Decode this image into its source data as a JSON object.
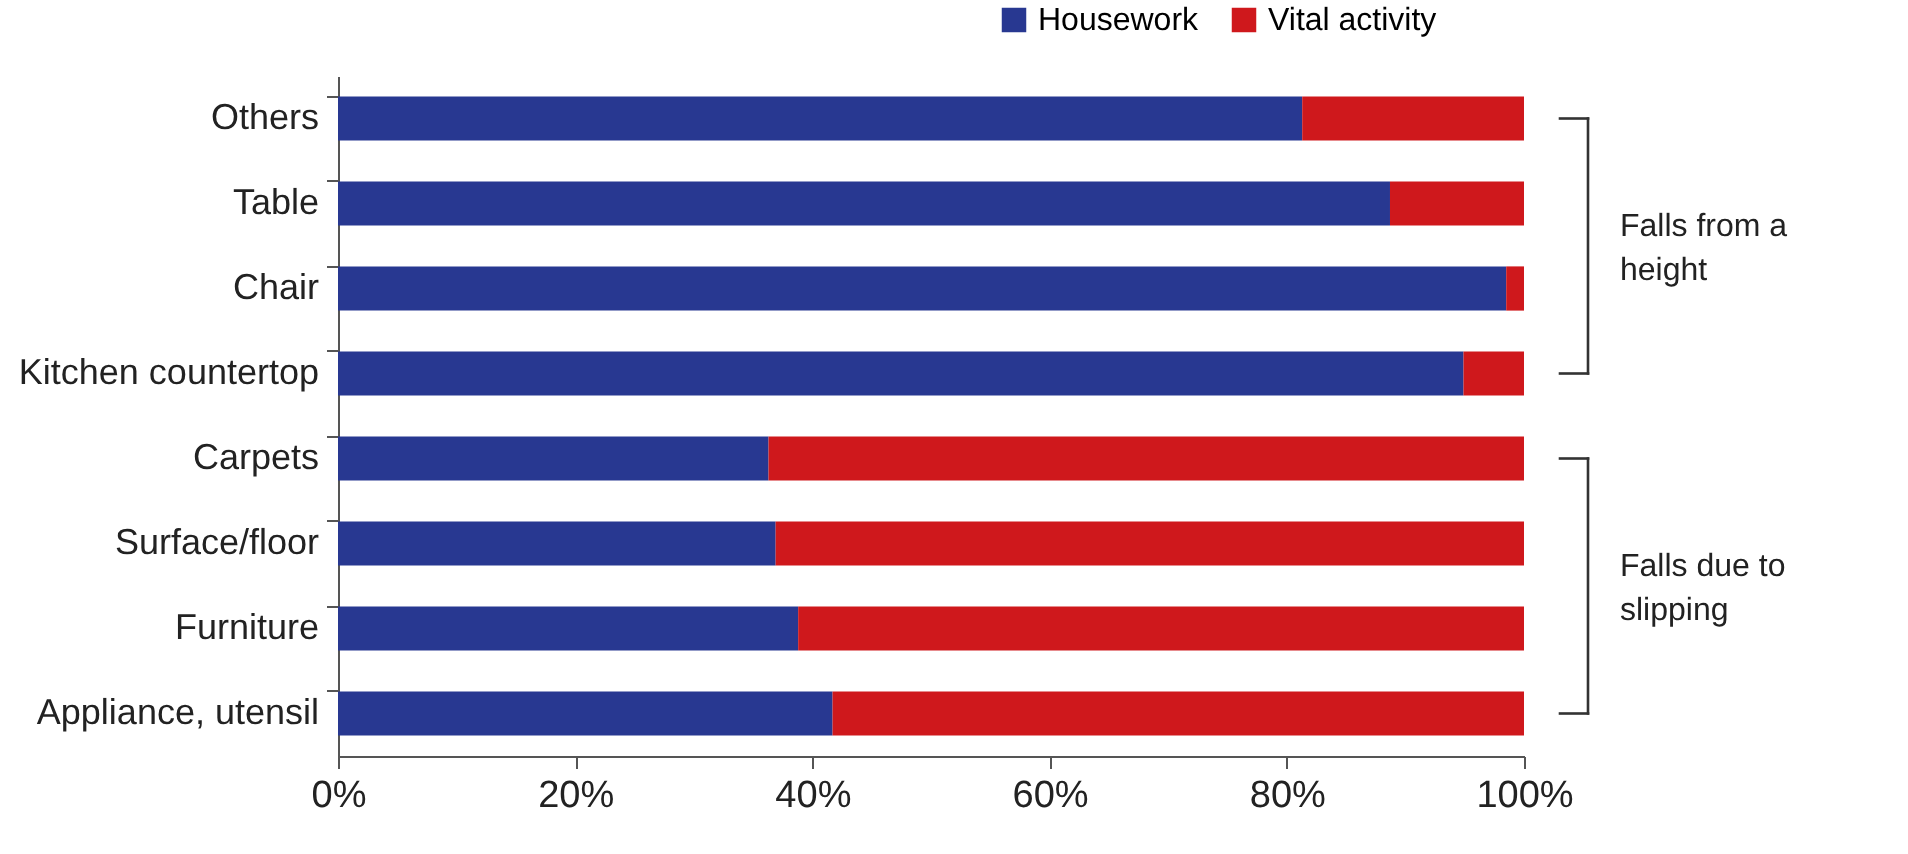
{
  "chart_data": {
    "type": "bar",
    "orientation": "horizontal",
    "stacked": true,
    "categories": [
      "Others",
      "Table",
      "Chair",
      "Kitchen countertop",
      "Carpets",
      "Surface/floor",
      "Furniture",
      "Appliance, utensil"
    ],
    "series": [
      {
        "name": "Housework",
        "color": "#283891",
        "values": [
          81.3,
          88.7,
          98.5,
          94.9,
          36.3,
          36.9,
          38.8,
          41.7
        ]
      },
      {
        "name": "Vital activity",
        "color": "#cf181c",
        "values": [
          18.7,
          11.3,
          1.5,
          5.1,
          63.7,
          63.1,
          61.2,
          58.3
        ]
      }
    ],
    "xlim": [
      0,
      100
    ],
    "xticks": [
      {
        "value": 0,
        "label": "0%"
      },
      {
        "value": 20,
        "label": "20%"
      },
      {
        "value": 40,
        "label": "40%"
      },
      {
        "value": 60,
        "label": "60%"
      },
      {
        "value": 80,
        "label": "80%"
      },
      {
        "value": 100,
        "label": "100%"
      }
    ],
    "annotations": [
      {
        "text": "Falls from a height"
      },
      {
        "text": "Falls due to slipping"
      }
    ],
    "grid": false,
    "legend": "top right"
  }
}
